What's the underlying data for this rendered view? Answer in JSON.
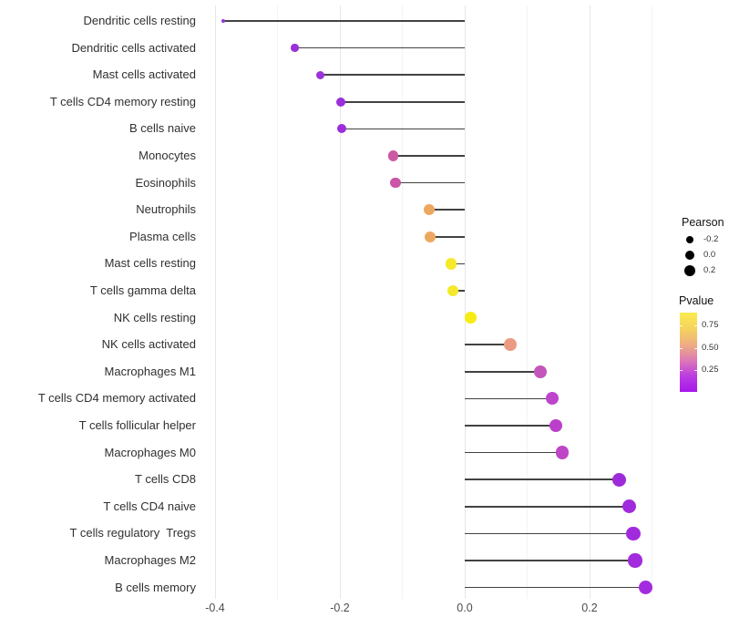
{
  "chart_data": {
    "type": "scatter",
    "variant": "lollipop",
    "title": "",
    "xlabel": "",
    "ylabel": "",
    "xlim": [
      -0.45,
      0.33
    ],
    "grid": "vertical-only",
    "x_ticks": [
      {
        "label": "-0.4",
        "value": -0.4
      },
      {
        "label": "-0.2",
        "value": -0.2
      },
      {
        "label": "0.0",
        "value": 0.0
      },
      {
        "label": "0.2",
        "value": 0.2
      }
    ],
    "x_minor_ticks": [
      -0.3,
      -0.1,
      0.1,
      0.3
    ],
    "categories": [
      "Dendritic cells resting",
      "Dendritic cells activated",
      "Mast cells activated",
      "T cells CD4 memory resting",
      "B cells naive",
      "Monocytes",
      "Eosinophils",
      "Neutrophils",
      "Plasma cells",
      "Mast cells resting",
      "T cells gamma delta",
      "NK cells resting",
      "NK cells activated",
      "Macrophages M1",
      "T cells CD4 memory activated",
      "T cells follicular helper",
      "Macrophages M0",
      "T cells CD8",
      "T cells CD4 naive",
      "T cells regulatory  Tregs",
      "Macrophages M2",
      "B cells memory"
    ],
    "series": [
      {
        "name": "Pearson",
        "values": [
          -0.387,
          -0.272,
          -0.231,
          -0.199,
          -0.197,
          -0.115,
          -0.111,
          -0.057,
          -0.055,
          -0.022,
          -0.019,
          0.009,
          0.073,
          0.121,
          0.14,
          0.146,
          0.156,
          0.248,
          0.264,
          0.27,
          0.273,
          0.29
        ]
      }
    ],
    "point_colors": [
      "#9436d8",
      "#9b2fd9",
      "#9c32da",
      "#9b2fd9",
      "#9b2fd9",
      "#cd58a4",
      "#cb55a6",
      "#eda85f",
      "#eda85f",
      "#f5e92a",
      "#f5e92a",
      "#f6ec13",
      "#ec9b83",
      "#c355bb",
      "#bc45cb",
      "#ba40cb",
      "#bf46c6",
      "#9d2bd9",
      "#a02bdc",
      "#a02bdc",
      "#a22bdd",
      "#a42bde"
    ],
    "segment_color": "#424242",
    "legend_position": "right"
  },
  "legend": {
    "pearson": {
      "title": "Pearson",
      "items": [
        {
          "label": "-0.2",
          "diameter": 8
        },
        {
          "label": "0.0",
          "diameter": 10.5
        },
        {
          "label": "0.2",
          "diameter": 12.5
        }
      ]
    },
    "pvalue": {
      "title": "Pvalue",
      "tick_labels": [
        "0.75",
        "0.50",
        "0.25"
      ],
      "gradient": [
        "#f9ec4f",
        "#f5d35d",
        "#efae81",
        "#dd7ab6",
        "#bb3ce1",
        "#a718ec"
      ]
    }
  }
}
